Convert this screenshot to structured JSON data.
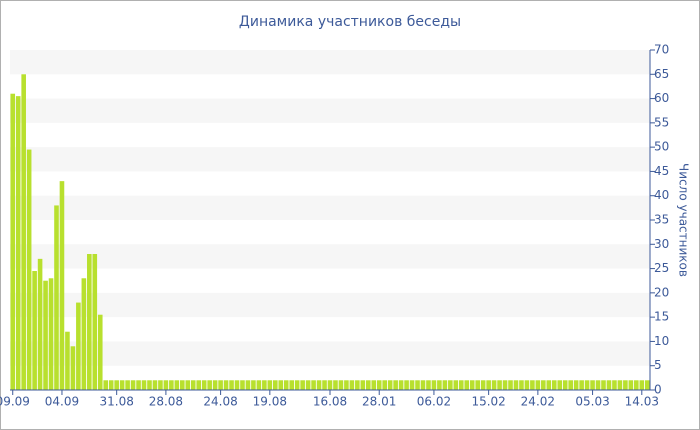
{
  "chart_data": {
    "type": "bar",
    "title": "Динамика участников беседы",
    "y_axis_title": "Число участников",
    "categories": [
      "09.09",
      null,
      null,
      null,
      null,
      null,
      null,
      null,
      null,
      "04.09",
      null,
      null,
      null,
      null,
      null,
      null,
      null,
      null,
      null,
      "31.08",
      null,
      null,
      null,
      null,
      null,
      null,
      null,
      null,
      "28.08",
      null,
      null,
      null,
      null,
      null,
      null,
      null,
      null,
      null,
      "24.08",
      null,
      null,
      null,
      null,
      null,
      null,
      null,
      null,
      "19.08",
      null,
      null,
      null,
      null,
      null,
      null,
      null,
      null,
      null,
      null,
      "16.08",
      null,
      null,
      null,
      null,
      null,
      null,
      null,
      null,
      "28.01",
      null,
      null,
      null,
      null,
      null,
      null,
      null,
      null,
      null,
      "06.02",
      null,
      null,
      null,
      null,
      null,
      null,
      null,
      null,
      null,
      "15.02",
      null,
      null,
      null,
      null,
      null,
      null,
      null,
      null,
      "24.02",
      null,
      null,
      null,
      null,
      null,
      null,
      null,
      null,
      null,
      "05.03",
      null,
      null,
      null,
      null,
      null,
      null,
      null,
      null,
      "14.03",
      null
    ],
    "values": [
      61,
      60.5,
      65,
      49.5,
      24.5,
      27,
      22.5,
      23,
      38,
      43,
      12,
      9,
      18,
      23,
      28,
      28,
      15.5,
      2,
      2,
      2,
      2,
      2,
      2,
      2,
      2,
      2,
      2,
      2,
      2,
      2,
      2,
      2,
      2,
      2,
      2,
      2,
      2,
      2,
      2,
      2,
      2,
      2,
      2,
      2,
      2,
      2,
      2,
      2,
      2,
      2,
      2,
      2,
      2,
      2,
      2,
      2,
      2,
      2,
      2,
      2,
      2,
      2,
      2,
      2,
      2,
      2,
      2,
      2,
      2,
      2,
      2,
      2,
      2,
      2,
      2,
      2,
      2,
      2,
      2,
      2,
      2,
      2,
      2,
      2,
      2,
      2,
      2,
      2,
      2,
      2,
      2,
      2,
      2,
      2,
      2,
      2,
      2,
      2,
      2,
      2,
      2,
      2,
      2,
      2,
      2,
      2,
      2,
      2,
      2,
      2,
      2,
      2,
      2,
      2,
      2,
      2,
      2
    ],
    "color": "#b8e02e",
    "ylim": [
      0,
      70
    ],
    "yticks": [
      0,
      5,
      10,
      15,
      20,
      25,
      30,
      35,
      40,
      45,
      50,
      55,
      60,
      65,
      70
    ],
    "y_axis_side": "right",
    "grid": true
  }
}
